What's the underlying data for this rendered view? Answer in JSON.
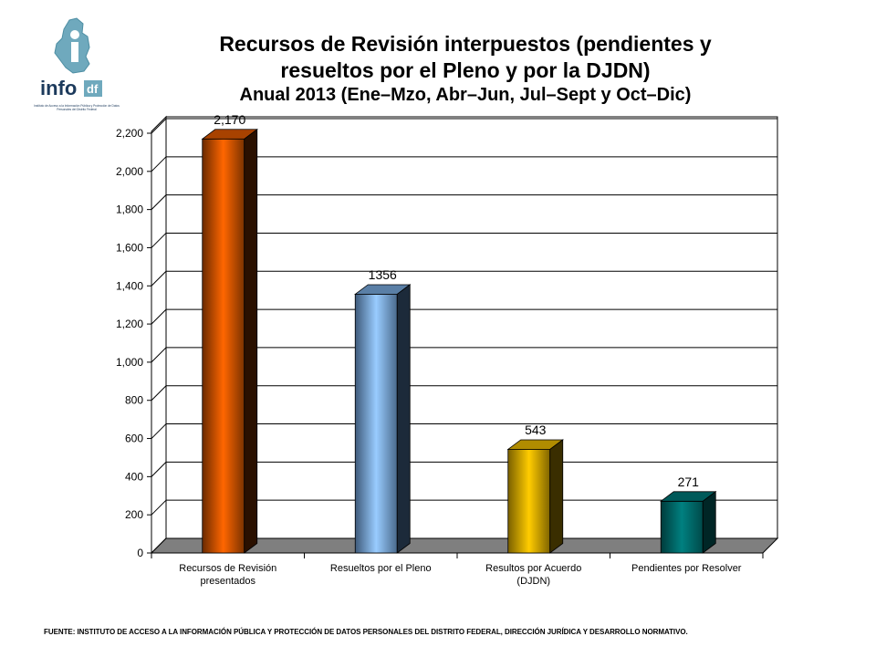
{
  "logo": {
    "name": "info",
    "suffix": "df",
    "caption": "Instituto de Acceso a la Información Pública y Protección de Datos Personales del Distrito Federal"
  },
  "header": {
    "title_line1": "Recursos de Revisión interpuestos (pendientes y",
    "title_line2": "resueltos por el Pleno y por la DJDN)",
    "subtitle": "Anual 2013 (Ene–Mzo, Abr–Jun, Jul–Sept y Oct–Dic)"
  },
  "chart_data": {
    "type": "bar",
    "categories": [
      [
        "Recursos de Revisión",
        "presentados"
      ],
      [
        "Resueltos por el Pleno"
      ],
      [
        "Resultos por Acuerdo",
        "(DJDN)"
      ],
      [
        "Pendientes por Resolver"
      ]
    ],
    "values": [
      2170,
      1356,
      543,
      271
    ],
    "data_labels": [
      "2,170",
      "1356",
      "543",
      "271"
    ],
    "ylim": [
      0,
      2200
    ],
    "yticks": [
      0,
      200,
      400,
      600,
      800,
      1000,
      1200,
      1400,
      1600,
      1800,
      2000,
      2200
    ],
    "ytick_labels": [
      "0",
      "200",
      "400",
      "600",
      "800",
      "1,000",
      "1,200",
      "1,400",
      "1,600",
      "1,800",
      "2,000",
      "2,200"
    ],
    "grid": true,
    "colors": [
      "#ff6600",
      "#99ccff",
      "#ffcc00",
      "#008080"
    ]
  },
  "footer": {
    "source": "FUENTE: INSTITUTO DE ACCESO A LA INFORMACIÓN PÚBLICA Y PROTECCIÓN DE DATOS PERSONALES DEL DISTRITO FEDERAL, DIRECCIÓN JURÍDICA Y DESARROLLO NORMATIVO."
  }
}
